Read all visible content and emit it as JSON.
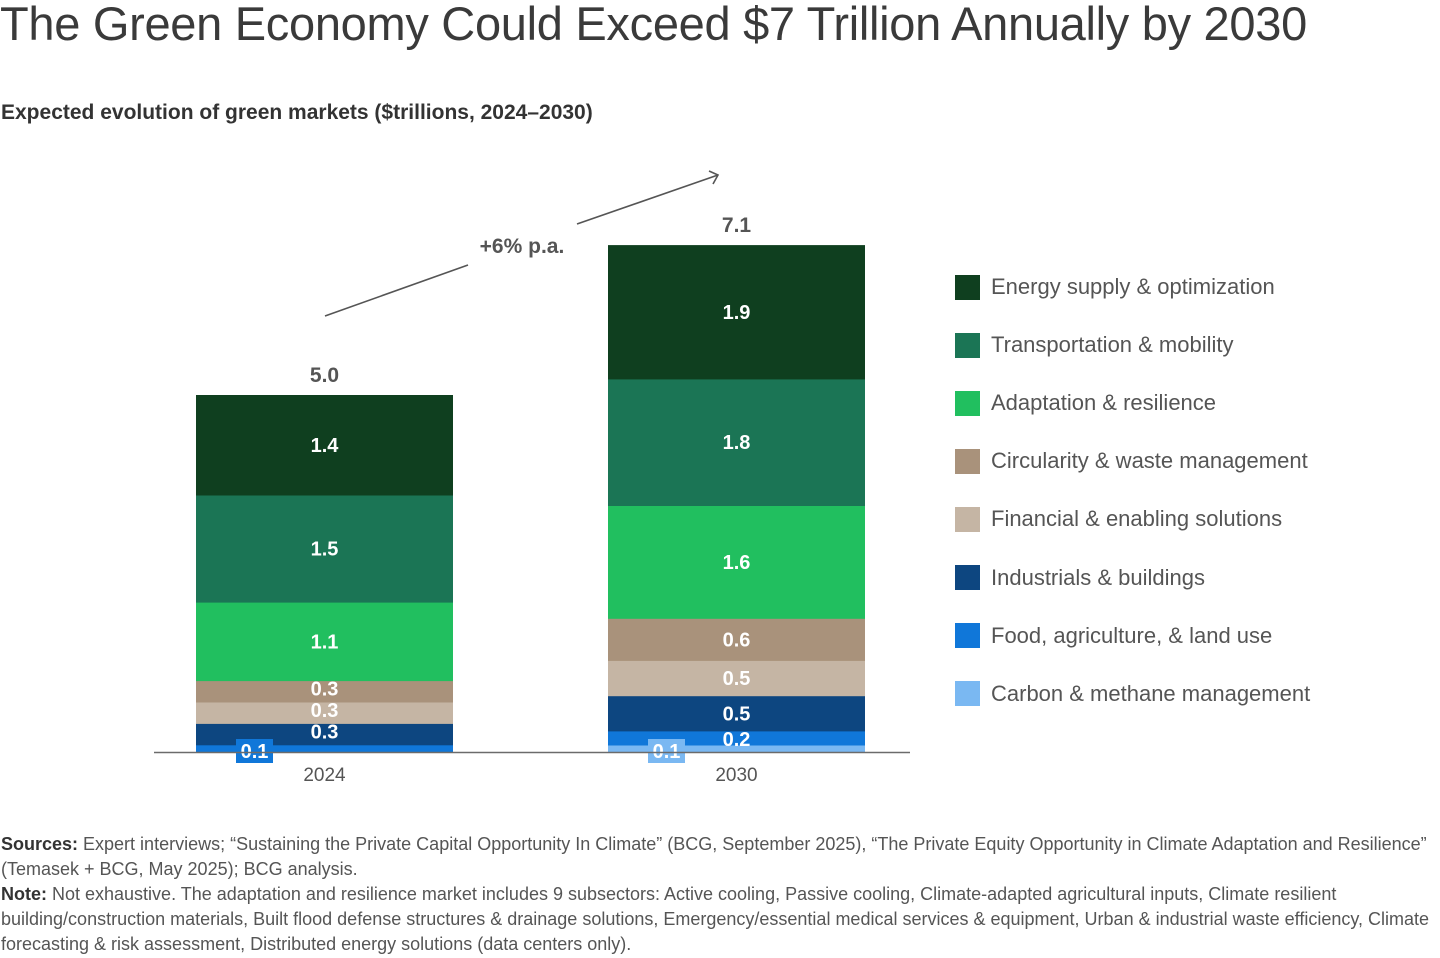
{
  "header": {
    "title": "The Green Economy Could Exceed $7 Trillion Annually by 2030",
    "subtitle": "Expected evolution of green markets ($trillions, 2024–2030)"
  },
  "chart_data": {
    "type": "bar",
    "stacked": true,
    "title": "Expected evolution of green markets ($trillions, 2024–2030)",
    "xlabel": "",
    "ylabel": "$trillions",
    "categories": [
      "2024",
      "2030"
    ],
    "totals": [
      5.0,
      7.1
    ],
    "total_labels": [
      "5.0",
      "7.1"
    ],
    "growth_annotation": "+6% p.a.",
    "legend_position": "right",
    "grid": false,
    "series": [
      {
        "name": "Energy supply & optimization",
        "color": "#0f3f1f",
        "values": [
          1.4,
          1.9
        ],
        "labels": [
          "1.4",
          "1.9"
        ]
      },
      {
        "name": "Transportation & mobility",
        "color": "#1b7555",
        "values": [
          1.5,
          1.8
        ],
        "labels": [
          "1.5",
          "1.8"
        ]
      },
      {
        "name": "Adaptation & resilience",
        "color": "#21bf5f",
        "values": [
          1.1,
          1.6
        ],
        "labels": [
          "1.1",
          "1.6"
        ]
      },
      {
        "name": "Circularity & waste management",
        "color": "#a9927b",
        "values": [
          0.3,
          0.6
        ],
        "labels": [
          "0.3",
          "0.6"
        ]
      },
      {
        "name": "Financial & enabling solutions",
        "color": "#c5b5a4",
        "values": [
          0.3,
          0.5
        ],
        "labels": [
          "0.3",
          "0.5"
        ]
      },
      {
        "name": "Industrials & buildings",
        "color": "#0d4680",
        "values": [
          0.3,
          0.5
        ],
        "labels": [
          "0.3",
          "0.5"
        ]
      },
      {
        "name": "Food, agriculture, & land use",
        "color": "#1077d9",
        "values": [
          0.1,
          0.2
        ],
        "labels": [
          "0.1",
          "0.2"
        ]
      },
      {
        "name": "Carbon & methane management",
        "color": "#7ab8f2",
        "values": [
          0.0,
          0.1
        ],
        "labels": [
          "",
          "0.1"
        ]
      }
    ],
    "callouts": [
      {
        "category": "2024",
        "series": "Food, agriculture, & land use",
        "label": "0.1",
        "color": "#1077d9"
      },
      {
        "category": "2030",
        "series": "Carbon & methane management",
        "label": "0.1",
        "color": "#7ab8f2"
      }
    ],
    "ylim": [
      0,
      7.1
    ]
  },
  "footer": {
    "sources_label": "Sources:",
    "sources_text": " Expert interviews; “Sustaining the Private Capital Opportunity In Climate” (BCG, September 2025), “The Private Equity Opportunity in Climate Adaptation and Resilience” (Temasek + BCG, May 2025); BCG analysis.",
    "note_label": "Note:",
    "note_text": " Not exhaustive. The adaptation and resilience market includes 9 subsectors: Active cooling, Passive cooling, Climate-adapted agricultural inputs, Climate resilient building/construction materials, Built flood defense structures & drainage solutions, Emergency/essential medical services & equipment, Urban & industrial waste efficiency, Climate forecasting & risk assessment, Distributed energy solutions (data centers only)."
  }
}
